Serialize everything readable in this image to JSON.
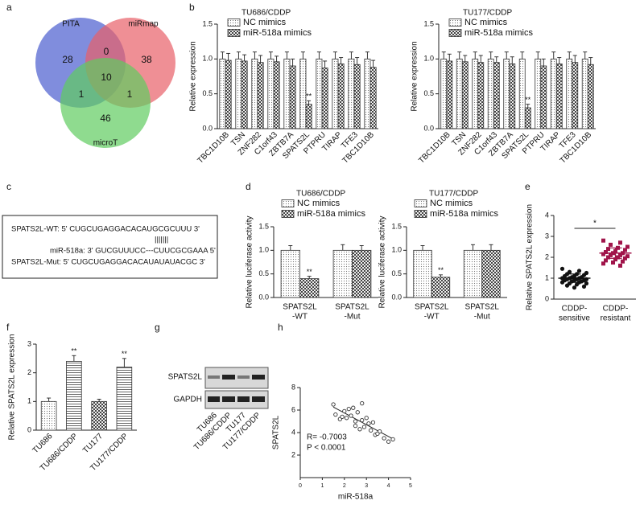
{
  "panel_labels": [
    "a",
    "b",
    "c",
    "d",
    "e",
    "f",
    "g",
    "h"
  ],
  "venn": {
    "sets": [
      "PITA",
      "miRmap",
      "microT"
    ],
    "regions": [
      "28",
      "0",
      "38",
      "10",
      "1",
      "1",
      "46"
    ]
  },
  "sequences": {
    "lines": [
      "SPATS2L-WT: 5' CUGCUGAGGACACAUGCGCUUU 3'",
      "|||||||",
      "miR-518a: 3' GUCGUUUCC---CUUCGCGAAA 5'",
      "SPATS2L-Mut: 5' CUGCUGAGGACACAUAUAUACGC 3'"
    ]
  },
  "blot": {
    "rows": [
      "SPATS2L",
      "GAPDH"
    ],
    "lanes": [
      "TU686",
      "TU686/CDDP",
      "TU177",
      "TU177/CDDP"
    ]
  },
  "chart_data": [
    {
      "type": "bar",
      "title": "TU686/CDDP",
      "y_label": "Relative expression",
      "categories": [
        "TBC1D10B",
        "TSN",
        "ZNF282",
        "C1orf43",
        "ZBTB7A",
        "SPATS2L",
        "PTPRU",
        "TIRAP",
        "TFE3",
        "TBC1D10B"
      ],
      "series": [
        {
          "name": "NC mimics",
          "color": "#333333",
          "pattern": "dots",
          "values": [
            1,
            1,
            1,
            1,
            1,
            1,
            1,
            1,
            1,
            1
          ],
          "errors": [
            0.1,
            0.1,
            0.1,
            0.1,
            0.1,
            0.1,
            0.1,
            0.1,
            0.1,
            0.1
          ]
        },
        {
          "name": "miR-518a mimics",
          "color": "#333333",
          "pattern": "checker",
          "values": [
            0.98,
            0.97,
            0.95,
            0.96,
            0.9,
            0.35,
            0.87,
            0.93,
            0.92,
            0.88
          ],
          "errors": [
            0.1,
            0.09,
            0.1,
            0.08,
            0.1,
            0.05,
            0.1,
            0.09,
            0.1,
            0.1
          ],
          "significance": [
            null,
            null,
            null,
            null,
            null,
            "**",
            null,
            null,
            null,
            null
          ]
        }
      ],
      "ylim": [
        0,
        1.5
      ],
      "yticks": [
        {
          "value": 0,
          "label": "0.0"
        },
        {
          "value": 0.5,
          "label": "0.5"
        },
        {
          "value": 1,
          "label": "1.0"
        },
        {
          "value": 1.5,
          "label": "1.5"
        }
      ]
    },
    {
      "type": "bar",
      "title": "TU177/CDDP",
      "y_label": "Relative expression",
      "categories": [
        "TBC1D10B",
        "TSN",
        "ZNF282",
        "C1orf43",
        "ZBTB7A",
        "SPATS2L",
        "PTPRU",
        "TIRAP",
        "TFE3",
        "TBC1D10B"
      ],
      "series": [
        {
          "name": "NC mimics",
          "color": "#333333",
          "pattern": "dots",
          "values": [
            1,
            1,
            1,
            1,
            1,
            1,
            1,
            1,
            1,
            1
          ],
          "errors": [
            0.1,
            0.1,
            0.1,
            0.1,
            0.1,
            0.1,
            0.1,
            0.1,
            0.1,
            0.1
          ]
        },
        {
          "name": "miR-518a mimics",
          "color": "#333333",
          "pattern": "checker",
          "values": [
            0.97,
            0.96,
            0.95,
            0.95,
            0.93,
            0.3,
            0.9,
            0.93,
            0.95,
            0.92
          ],
          "errors": [
            0.1,
            0.09,
            0.1,
            0.08,
            0.1,
            0.05,
            0.1,
            0.09,
            0.1,
            0.1
          ],
          "significance": [
            null,
            null,
            null,
            null,
            null,
            "**",
            null,
            null,
            null,
            null
          ]
        }
      ],
      "ylim": [
        0,
        1.5
      ],
      "yticks": [
        {
          "value": 0,
          "label": "0.0"
        },
        {
          "value": 0.5,
          "label": "0.5"
        },
        {
          "value": 1,
          "label": "1.0"
        },
        {
          "value": 1.5,
          "label": "1.5"
        }
      ]
    },
    {
      "type": "bar",
      "title": "TU686/CDDP",
      "y_label": "Relative luciferase activity",
      "categories": [
        [
          "SPATS2L",
          "-WT"
        ],
        [
          "SPATS2L",
          "-Mut"
        ]
      ],
      "series": [
        {
          "name": "NC mimics",
          "color": "#333333",
          "pattern": "dots",
          "values": [
            1,
            1
          ],
          "errors": [
            0.1,
            0.12
          ]
        },
        {
          "name": "miR-518a mimics",
          "color": "#333333",
          "pattern": "checker",
          "values": [
            0.4,
            1
          ],
          "errors": [
            0.05,
            0.1
          ],
          "significance": [
            "**",
            null
          ]
        }
      ],
      "ylim": [
        0,
        1.5
      ],
      "yticks": [
        {
          "value": 0,
          "label": "0.0"
        },
        {
          "value": 0.5,
          "label": "0.5"
        },
        {
          "value": 1,
          "label": "1.0"
        },
        {
          "value": 1.5,
          "label": "1.5"
        }
      ]
    },
    {
      "type": "bar",
      "title": "TU177/CDDP",
      "y_label": "Relative luciferase activity",
      "categories": [
        [
          "SPATS2L",
          "-WT"
        ],
        [
          "SPATS2L",
          "-Mut"
        ]
      ],
      "series": [
        {
          "name": "NC mimics",
          "color": "#333333",
          "pattern": "dots",
          "values": [
            1,
            1
          ],
          "errors": [
            0.1,
            0.12
          ]
        },
        {
          "name": "miR-518a mimics",
          "color": "#333333",
          "pattern": "checker",
          "values": [
            0.43,
            1
          ],
          "errors": [
            0.05,
            0.12
          ],
          "significance": [
            "**",
            null
          ]
        }
      ],
      "ylim": [
        0,
        1.5
      ],
      "yticks": [
        {
          "value": 0,
          "label": "0.0"
        },
        {
          "value": 0.5,
          "label": "0.5"
        },
        {
          "value": 1,
          "label": "1.0"
        },
        {
          "value": 1.5,
          "label": "1.5"
        }
      ]
    },
    {
      "type": "strip",
      "y_label": "Relative SPATS2L  expression",
      "annotation": "*",
      "categories": [
        [
          "CDDP-",
          "sensitive"
        ],
        [
          "CDDP-",
          "resistant"
        ]
      ],
      "groups": [
        {
          "color": "#111111",
          "marker": "circle",
          "mean": 1.0,
          "sd": 0.2,
          "values": [
            1.45,
            1.35,
            1.3,
            1.25,
            1.2,
            1.2,
            1.15,
            1.1,
            1.1,
            1.05,
            1.05,
            1.0,
            1.0,
            1.0,
            0.95,
            0.95,
            0.95,
            0.9,
            0.9,
            0.9,
            0.85,
            0.85,
            0.8,
            0.8,
            0.75,
            0.75,
            0.7,
            0.65,
            0.6,
            0.55
          ]
        },
        {
          "color": "#a0144a",
          "marker": "square",
          "mean": 2.2,
          "sd": 0.25,
          "values": [
            2.8,
            2.7,
            2.6,
            2.5,
            2.45,
            2.4,
            2.35,
            2.3,
            2.25,
            2.2,
            2.2,
            2.15,
            2.1,
            2.1,
            2.05,
            2.0,
            2.0,
            1.95,
            1.9,
            1.85,
            1.8,
            1.75,
            1.7,
            1.6
          ]
        }
      ],
      "ylim": [
        0,
        4
      ],
      "yticks": [
        0,
        1,
        2,
        3,
        4
      ]
    },
    {
      "type": "bar",
      "y_label": "Relative SPATS2L expression",
      "categories": [
        "TU686",
        "TU686/CDDP",
        "TU177",
        "TU177/CDDP"
      ],
      "values": [
        1.0,
        2.4,
        1.0,
        2.2
      ],
      "errors": [
        0.12,
        0.2,
        0.08,
        0.3
      ],
      "patterns": [
        "dots",
        "hlines",
        "checker",
        "hlines"
      ],
      "color": "#333333",
      "significance": [
        null,
        "**",
        null,
        "**"
      ],
      "ylim": [
        0,
        3
      ],
      "yticks": [
        0,
        1,
        2,
        3
      ]
    },
    {
      "type": "scatter",
      "y_label": "SPATS2L",
      "x_label": "miR-518a",
      "color": "#333333",
      "annotations": [
        "R= -0.7003",
        "P < 0.0001"
      ],
      "x": [
        1.5,
        1.6,
        1.8,
        1.9,
        2.0,
        2.1,
        2.2,
        2.3,
        2.4,
        2.5,
        2.5,
        2.6,
        2.7,
        2.8,
        2.8,
        2.9,
        3.0,
        3.1,
        3.2,
        3.3,
        3.4,
        3.6,
        3.8,
        4.0,
        4.2,
        3.5
      ],
      "values": [
        6.5,
        5.6,
        5.2,
        5.4,
        5.9,
        5.3,
        6.1,
        5.5,
        6.2,
        5.0,
        4.6,
        5.8,
        4.3,
        5.1,
        6.6,
        4.5,
        5.3,
        4.8,
        4.2,
        4.9,
        3.8,
        4.1,
        3.5,
        3.2,
        3.4,
        3.9
      ],
      "xlim": [
        0,
        5
      ],
      "xticks": [
        0,
        1,
        2,
        3,
        4,
        5
      ],
      "ylim": [
        0,
        8
      ],
      "yticks": [
        2,
        4,
        6,
        8
      ]
    }
  ]
}
